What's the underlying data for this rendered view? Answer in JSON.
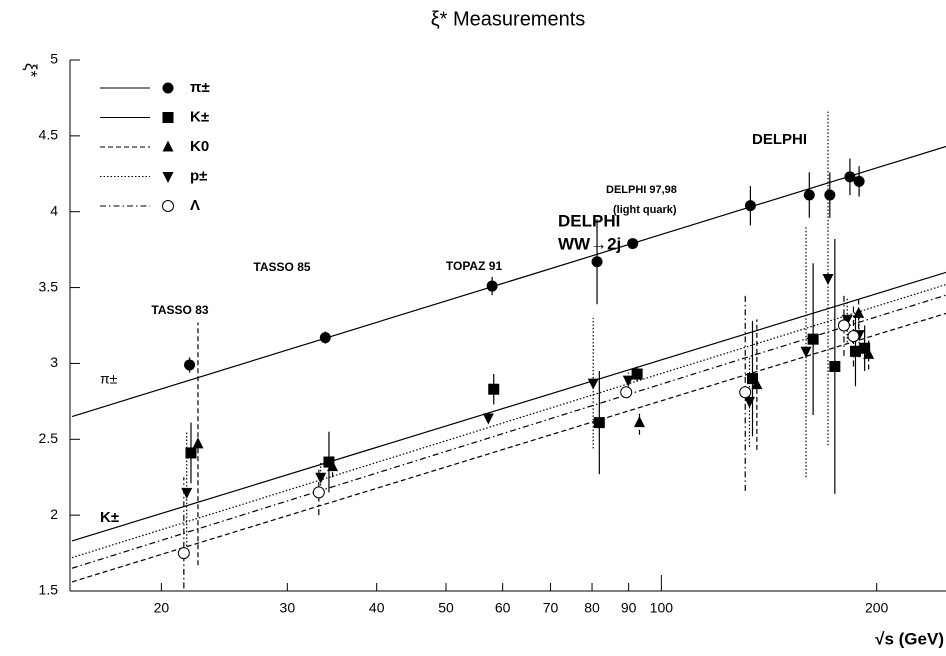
{
  "chart_data": {
    "type": "scatter",
    "title": "ξ* Measurements",
    "y_label": "ξ*",
    "x_label": "√s (GeV)",
    "log_x": true,
    "xlim": [
      15,
      250
    ],
    "xticks": [
      20,
      30,
      40,
      50,
      60,
      70,
      80,
      90,
      100,
      200
    ],
    "ylim": [
      1.5,
      5
    ],
    "yticks": [
      1.5,
      2,
      2.5,
      3,
      3.5,
      4,
      4.5,
      5
    ],
    "annotations": [
      "TASSO 83",
      "TASSO 85",
      "TOPAZ 91",
      "DELPHI",
      "WW→2j",
      "DELPHI 97,98",
      "(light quark)",
      "DELPHI",
      "π±",
      "K±"
    ],
    "series": [
      {
        "name": "π±",
        "marker": "circle",
        "line": "solid",
        "color": "#000000",
        "x": [
          21.9,
          33.9,
          58,
          81.3,
          91.2,
          133.2,
          161,
          172,
          183.5,
          189
        ],
        "values": [
          2.99,
          3.17,
          3.51,
          3.67,
          3.79,
          4.04,
          4.11,
          4.11,
          4.23,
          4.2
        ],
        "errors": [
          0.05,
          0.04,
          0.06,
          0.28,
          0.03,
          0.13,
          0.15,
          0.15,
          0.12,
          0.1
        ],
        "fit": {
          "x": [
            15,
            250
          ],
          "values": [
            2.65,
            4.43
          ]
        }
      },
      {
        "name": "K±",
        "marker": "square",
        "line": "solid",
        "color": "#000000",
        "x": [
          22,
          34.3,
          58.3,
          81.9,
          92.5,
          134.1,
          163,
          174.8,
          186.8,
          192.4
        ],
        "values": [
          2.41,
          2.35,
          2.83,
          2.61,
          2.93,
          2.9,
          3.16,
          2.98,
          3.08,
          3.1
        ],
        "errors": [
          0.2,
          0.2,
          0.1,
          0.34,
          0.05,
          0.38,
          0.5,
          0.84,
          0.23,
          0.15
        ],
        "fit": {
          "x": [
            15,
            250
          ],
          "values": [
            1.83,
            3.6
          ]
        }
      },
      {
        "name": "K0",
        "marker": "triangle-up",
        "line": "dashed",
        "color": "#000000",
        "x": [
          22.5,
          34.7,
          93.2,
          136,
          188.7,
          194.9
        ],
        "values": [
          2.47,
          2.32,
          2.61,
          2.86,
          3.33,
          3.06
        ],
        "errors": [
          0.8,
          0.07,
          0.08,
          0.43,
          0.1,
          0.1
        ],
        "fit": {
          "x": [
            15,
            250
          ],
          "values": [
            1.56,
            3.33
          ]
        }
      },
      {
        "name": "p±",
        "marker": "triangle-down",
        "line": "dotted",
        "color": "#000000",
        "x": [
          21.7,
          33.4,
          57.3,
          80.3,
          89.9,
          132.8,
          159.3,
          171,
          181.9,
          189
        ],
        "values": [
          2.15,
          2.25,
          2.64,
          2.87,
          2.89,
          2.75,
          3.08,
          3.56,
          3.29,
          3.19
        ],
        "errors": [
          0.4,
          0.1,
          0.03,
          0.43,
          0.05,
          0.3,
          0.83,
          1.1,
          0.15,
          0.15
        ],
        "fit": {
          "x": [
            15,
            250
          ],
          "values": [
            1.72,
            3.52
          ]
        }
      },
      {
        "name": "Λ",
        "marker": "open-circle",
        "line": "dashdot",
        "color": "#000000",
        "x": [
          21.5,
          33.2,
          89.3,
          131,
          180,
          185.6
        ],
        "values": [
          1.75,
          2.15,
          2.81,
          2.81,
          3.25,
          3.18
        ],
        "errors": [
          0.5,
          0.15,
          0.03,
          0.65,
          0.2,
          0.2
        ],
        "fit": {
          "x": [
            15,
            250
          ],
          "values": [
            1.65,
            3.45
          ]
        }
      }
    ]
  }
}
